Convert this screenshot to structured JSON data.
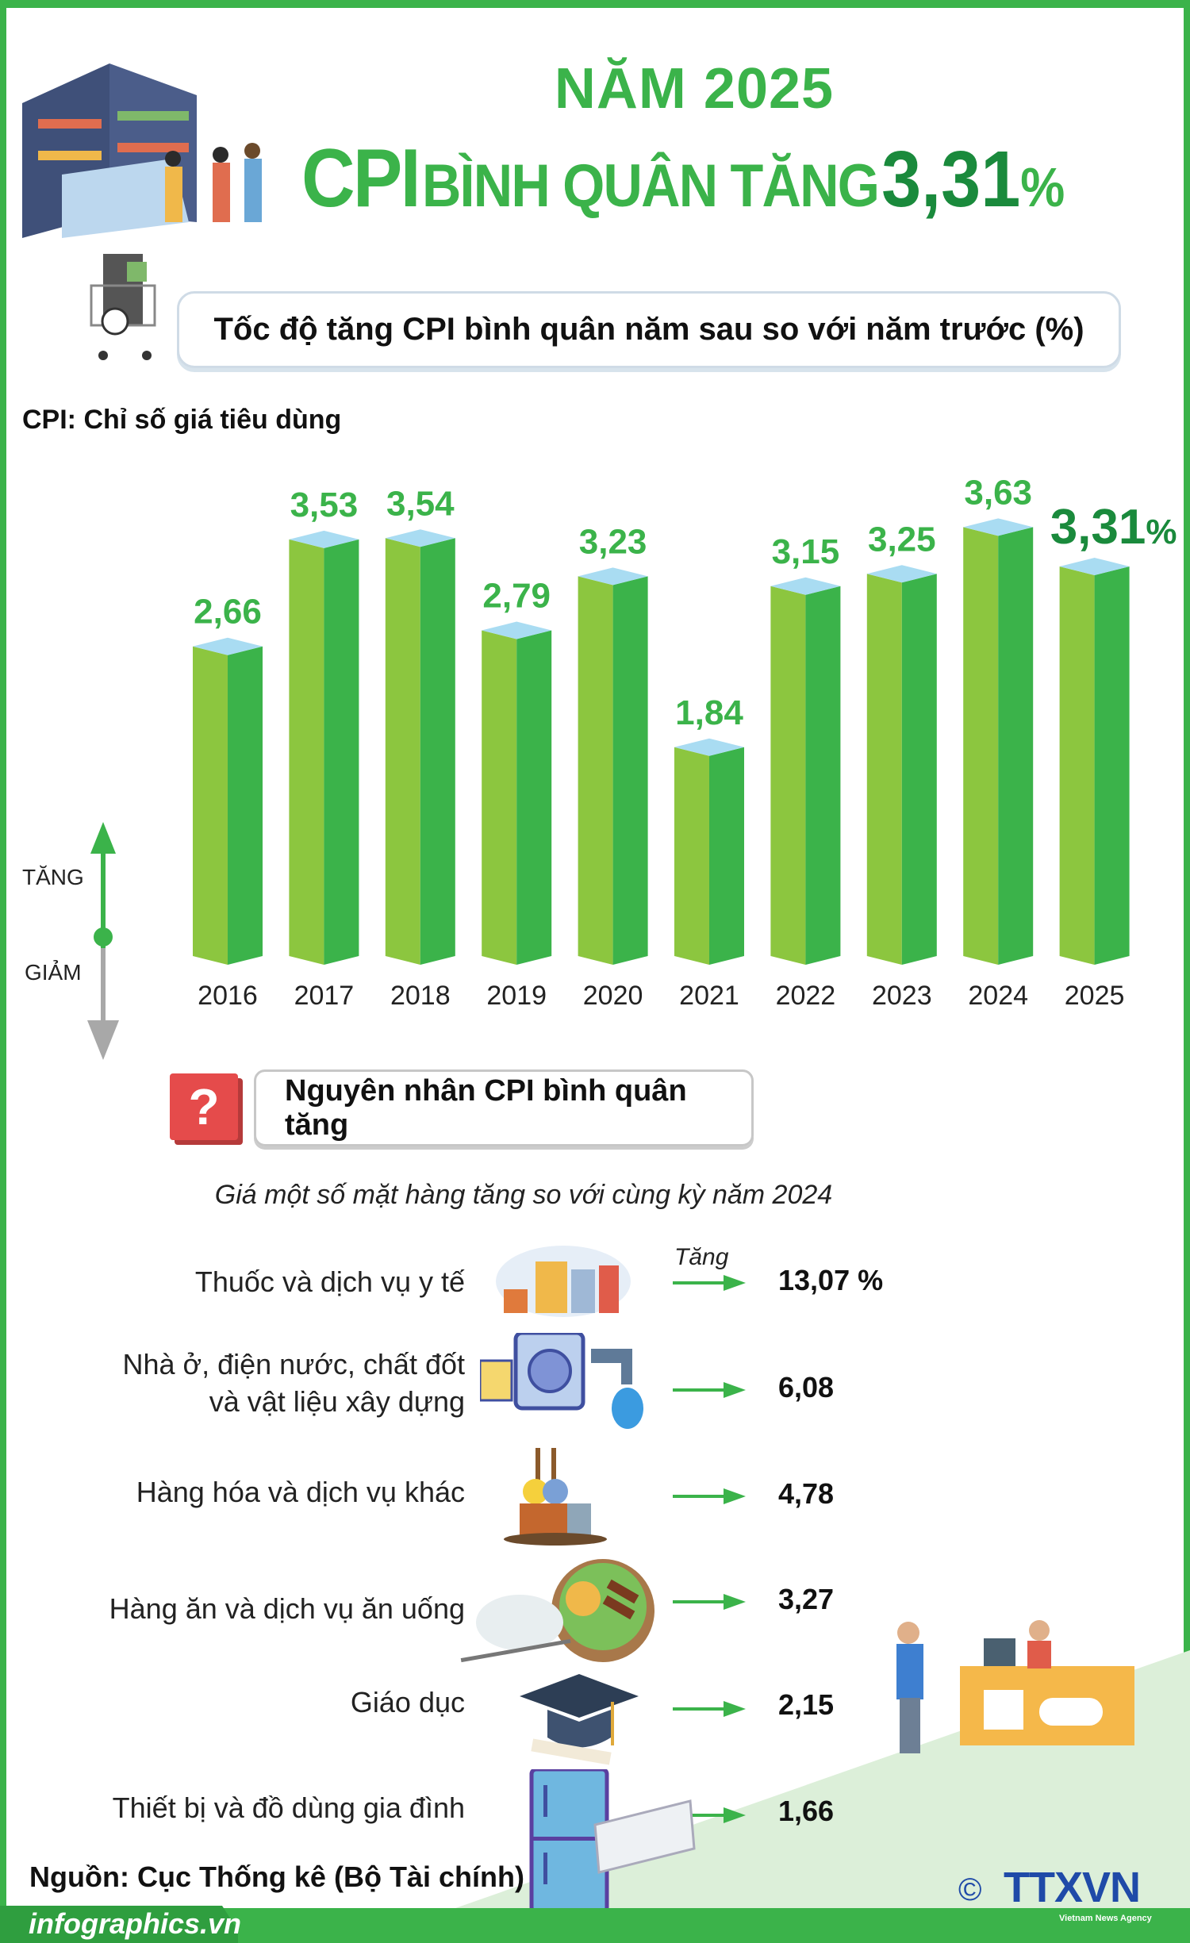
{
  "header": {
    "year_title": "NĂM 2025",
    "headline_cpi": "CPI",
    "headline_mid": "BÌNH QUÂN TĂNG",
    "headline_value": "3,31",
    "headline_pct": "%"
  },
  "chart_title": "Tốc độ tăng CPI bình quân năm sau so với năm trước (%)",
  "cpi_definition": "CPI: Chỉ số giá tiêu dùng",
  "legend": {
    "up": "TĂNG",
    "down": "GIẢM"
  },
  "colors": {
    "primary_green": "#3bb34a",
    "dark_green": "#1a8a3c",
    "bar_left": "#8cc63f",
    "bar_right": "#3bb34a",
    "bar_top": "#a9dcf2",
    "question_red": "#e54b4b"
  },
  "chart_data": {
    "type": "bar",
    "categories": [
      "2016",
      "2017",
      "2018",
      "2019",
      "2020",
      "2021",
      "2022",
      "2023",
      "2024",
      "2025"
    ],
    "values": [
      2.66,
      3.53,
      3.54,
      2.79,
      3.23,
      1.84,
      3.15,
      3.25,
      3.63,
      3.31
    ],
    "labels": [
      "2,66",
      "3,53",
      "3,54",
      "2,79",
      "3,23",
      "1,84",
      "3,15",
      "3,25",
      "3,63",
      "3,31"
    ],
    "highlight_suffix": "%",
    "title": "Tốc độ tăng CPI bình quân năm sau so với năm trước (%)",
    "xlabel": "",
    "ylabel": "",
    "ylim": [
      0,
      4
    ],
    "grid": false
  },
  "causes": {
    "heading": "Nguyên nhân CPI bình quân tăng",
    "question_mark": "?",
    "subtitle": "Giá một số mặt hàng tăng so với cùng kỳ năm 2024",
    "increase_label": "Tăng",
    "items": [
      {
        "label": "Thuốc và dịch vụ y tế",
        "value": "13,07 %",
        "icon": "medicine-icon"
      },
      {
        "label": "Nhà ở, điện nước, chất đốt\nvà vật liệu xây dựng",
        "value": "6,08",
        "icon": "utilities-icon"
      },
      {
        "label": "Hàng hóa và dịch vụ khác",
        "value": "4,78",
        "icon": "goods-icon"
      },
      {
        "label": "Hàng ăn và dịch vụ ăn uống",
        "value": "3,27",
        "icon": "food-icon"
      },
      {
        "label": "Giáo dục",
        "value": "2,15",
        "icon": "graduation-cap-icon"
      },
      {
        "label": "Thiết bị và đồ dùng gia đình",
        "value": "1,66",
        "icon": "appliance-icon"
      }
    ]
  },
  "source": "Nguồn: Cục Thống kê (Bộ Tài chính)",
  "footer": {
    "site": "infographics.vn",
    "logo": "TTXVN",
    "logo_sub": "Vietnam News Agency",
    "copyright": "©"
  }
}
